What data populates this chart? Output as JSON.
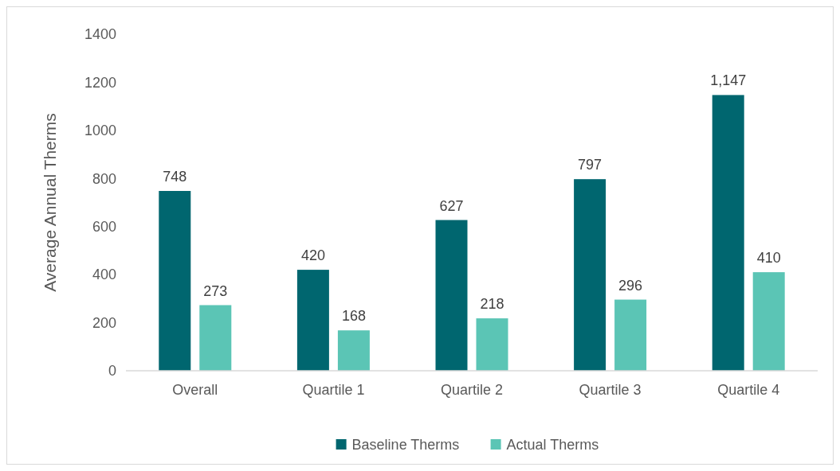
{
  "chart_data": {
    "type": "bar",
    "ylabel": "Average Annual Therms",
    "categories": [
      "Overall",
      "Quartile 1",
      "Quartile 2",
      "Quartile 3",
      "Quartile 4"
    ],
    "series": [
      {
        "name": "Baseline Therms",
        "color": "#00666f",
        "values": [
          748,
          420,
          627,
          797,
          1147
        ],
        "value_labels": [
          "748",
          "420",
          "627",
          "797",
          "1,147"
        ]
      },
      {
        "name": "Actual Therms",
        "color": "#5bc5b5",
        "values": [
          273,
          168,
          218,
          296,
          410
        ],
        "value_labels": [
          "273",
          "168",
          "218",
          "296",
          "410"
        ]
      }
    ],
    "ylim": [
      0,
      1400
    ],
    "yticks": [
      0,
      200,
      400,
      600,
      800,
      1000,
      1200,
      1400
    ],
    "grid": false,
    "legend": "bottom"
  }
}
